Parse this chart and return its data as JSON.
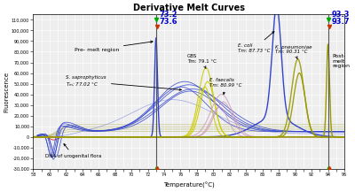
{
  "title": "Derivative Melt Curves",
  "xlabel": "Temperature(°C)",
  "ylabel": "Fluorescence",
  "xlim": [
    58,
    96
  ],
  "ylim": [
    -30000,
    115000
  ],
  "ytick_labels": [
    "-30,000",
    "-20,000",
    "-10,000",
    "0",
    "10,000",
    "20,000",
    "30,000",
    "40,000",
    "50,000",
    "60,000",
    "70,000",
    "80,000",
    "90,000",
    "100,000",
    "110,000"
  ],
  "ytick_vals": [
    -30000,
    -20000,
    -10000,
    0,
    10000,
    20000,
    30000,
    40000,
    50000,
    60000,
    70000,
    80000,
    90000,
    100000,
    110000
  ],
  "vline1_x": 73.0,
  "vline2_x": 94.0,
  "ann_73_2": {
    "text": "73.2",
    "color": "#0000cc"
  },
  "ann_73_6": {
    "text": "73.6",
    "color": "#0000cc"
  },
  "ann_93_3": {
    "text": "93.3",
    "color": "#0000cc"
  },
  "ann_93_7": {
    "text": "93.7",
    "color": "#0000cc"
  },
  "blue_color": "#3344cc",
  "blue_light": "#5566dd",
  "yellow_color": "#cccc00",
  "olive_color": "#999900",
  "pink_color": "#cc99bb",
  "red_color": "#dd2222",
  "bg_color": "#eeeeee",
  "grid_color": "#ffffff"
}
